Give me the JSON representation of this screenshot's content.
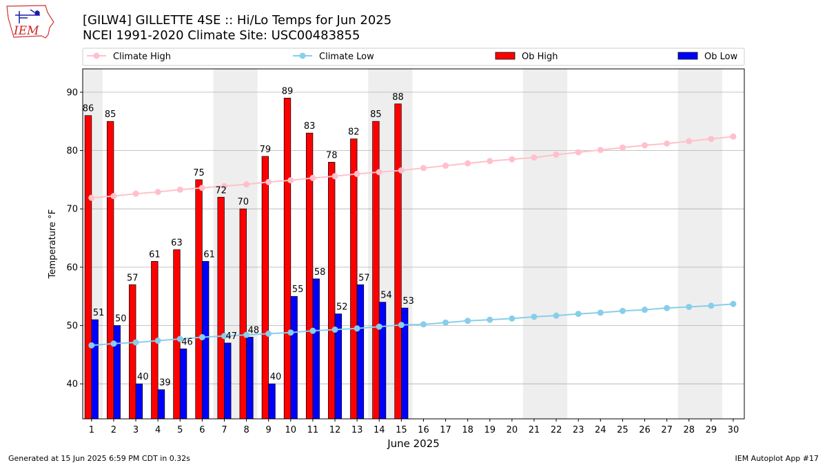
{
  "header": {
    "title_line1": "[GILW4] GILLETTE 4SE :: Hi/Lo Temps for Jun 2025",
    "title_line2": "NCEI 1991-2020 Climate Site: USC00483855"
  },
  "logo": {
    "text": "IEM"
  },
  "footer": {
    "left": "Generated at 15 Jun 2025 6:59 PM CDT in 0.32s",
    "right": "IEM Autoplot App #17"
  },
  "legend": {
    "climate_high": "Climate High",
    "climate_low": "Climate Low",
    "ob_high": "Ob High",
    "ob_low": "Ob Low"
  },
  "colors": {
    "ob_high": "#ff0000",
    "ob_low": "#0000ff",
    "climate_high": "#ffc0cb",
    "climate_low": "#87ceeb",
    "weekend_shade": "#eeeeee",
    "grid": "#b0b0b0"
  },
  "chart_data": {
    "type": "bar",
    "xlabel": "June 2025",
    "ylabel": "Temperature °F",
    "ylim": [
      34,
      94
    ],
    "yticks": [
      40,
      50,
      60,
      70,
      80,
      90
    ],
    "days": [
      1,
      2,
      3,
      4,
      5,
      6,
      7,
      8,
      9,
      10,
      11,
      12,
      13,
      14,
      15,
      16,
      17,
      18,
      19,
      20,
      21,
      22,
      23,
      24,
      25,
      26,
      27,
      28,
      29,
      30
    ],
    "weekend_shading": [
      [
        1,
        1
      ],
      [
        7,
        8
      ],
      [
        14,
        15
      ],
      [
        21,
        22
      ],
      [
        28,
        29
      ]
    ],
    "grid": "horizontal",
    "ob_high": [
      86,
      85,
      57,
      61,
      63,
      75,
      72,
      70,
      79,
      89,
      83,
      78,
      82,
      85,
      88
    ],
    "ob_low": [
      51,
      50,
      40,
      39,
      46,
      61,
      47,
      48,
      40,
      55,
      58,
      52,
      57,
      54,
      53
    ],
    "climate_high": [
      71.9,
      72.2,
      72.6,
      72.9,
      73.3,
      73.6,
      73.9,
      74.2,
      74.6,
      74.9,
      75.3,
      75.6,
      76.0,
      76.3,
      76.6,
      77.0,
      77.4,
      77.8,
      78.2,
      78.5,
      78.8,
      79.3,
      79.7,
      80.1,
      80.5,
      80.9,
      81.2,
      81.6,
      82.0,
      82.4
    ],
    "climate_low": [
      46.6,
      46.9,
      47.1,
      47.4,
      47.7,
      48.0,
      48.2,
      48.4,
      48.6,
      48.8,
      49.1,
      49.3,
      49.5,
      49.8,
      50.1,
      50.2,
      50.5,
      50.8,
      51.0,
      51.2,
      51.5,
      51.7,
      52.0,
      52.2,
      52.5,
      52.7,
      53.0,
      53.2,
      53.4,
      53.7
    ]
  }
}
